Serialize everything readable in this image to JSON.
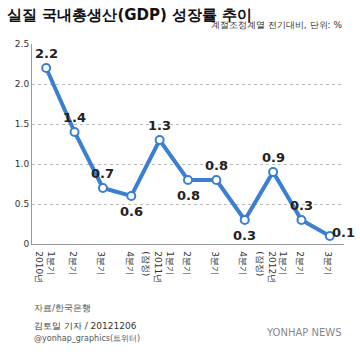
{
  "chart_data": {
    "type": "line",
    "title": "실질 국내총생산(GDP) 성장률 추이",
    "subtitle": "계절조정계열 전기대비, 단위: %",
    "categories": [
      "1분기\n2010년",
      "2분기",
      "3분기",
      "4분기",
      "1분기\n2011년\n(잠정)",
      "2분기",
      "3분기",
      "4분기",
      "1분기\n2012년\n(잠정)",
      "2분기",
      "3분기"
    ],
    "values": [
      2.2,
      1.4,
      0.7,
      0.6,
      1.3,
      0.8,
      0.8,
      0.3,
      0.9,
      0.3,
      0.1
    ],
    "color": "#3a7fd0",
    "ylim": [
      0,
      2.5
    ],
    "yticks": [
      0,
      0.5,
      {
        "value": 1,
        "label": "1.0"
      },
      1.5,
      {
        "value": 2,
        "label": "2.0"
      },
      2.5
    ],
    "grid": true,
    "data_labels": true,
    "marker": "circle",
    "annotations": [
      "자료/한국은행",
      "김토일 기자 / 20121206",
      "@yonhap_graphics(트위터)",
      "YONHAP NEWS"
    ]
  }
}
